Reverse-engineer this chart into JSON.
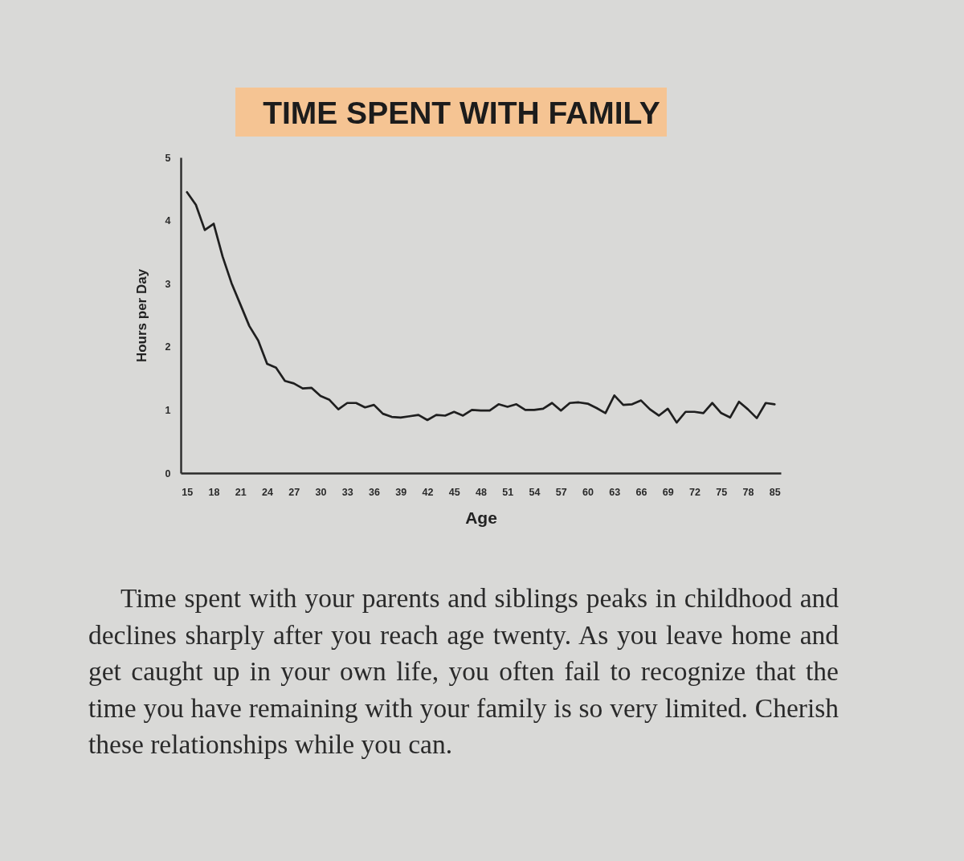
{
  "chart_data": {
    "type": "line",
    "title": "TIME SPENT WITH FAMILY",
    "xlabel": "Age",
    "ylabel": "Hours per Day",
    "categories": [
      "15",
      null,
      null,
      "18",
      null,
      null,
      "21",
      null,
      null,
      "24",
      null,
      null,
      "27",
      null,
      null,
      "30",
      null,
      null,
      "33",
      null,
      null,
      "36",
      null,
      null,
      "39",
      null,
      null,
      "42",
      null,
      null,
      "45",
      null,
      null,
      "48",
      null,
      null,
      "51",
      null,
      null,
      "54",
      null,
      null,
      "57",
      null,
      null,
      "60",
      null,
      null,
      "63",
      null,
      null,
      "66",
      null,
      null,
      "69",
      null,
      null,
      "72",
      null,
      null,
      "75",
      null,
      null,
      "78",
      null,
      null,
      "85"
    ],
    "series": [
      {
        "color": "#1f1f1f",
        "values": [
          4.45,
          4.25,
          3.85,
          3.95,
          3.43,
          3.01,
          2.67,
          2.33,
          2.1,
          1.73,
          1.67,
          1.46,
          1.42,
          1.34,
          1.35,
          1.22,
          1.16,
          1.01,
          1.11,
          1.11,
          1.04,
          1.08,
          0.94,
          0.89,
          0.88,
          0.9,
          0.92,
          0.84,
          0.92,
          0.91,
          0.97,
          0.91,
          1.0,
          0.99,
          0.99,
          1.09,
          1.05,
          1.09,
          1.0,
          1.0,
          1.02,
          1.11,
          0.99,
          1.11,
          1.12,
          1.1,
          1.03,
          0.95,
          1.23,
          1.08,
          1.09,
          1.15,
          1.01,
          0.91,
          1.02,
          0.8,
          0.97,
          0.97,
          0.95,
          1.11,
          0.95,
          0.88,
          1.13,
          1.01,
          0.87,
          1.11,
          1.09
        ]
      }
    ],
    "ylim": [
      0,
      5
    ],
    "yticks": [
      0,
      1,
      2,
      3,
      4,
      5
    ],
    "line_style": "solid",
    "annotations": [
      "Time spent with your parents and siblings peaks in childhood and declines sharply after you reach age twenty. As you leave home and get caught up in your own life, you often fail to recognize that the time you have remaining with your family is so very limited. Cherish these relationships while you can."
    ]
  }
}
